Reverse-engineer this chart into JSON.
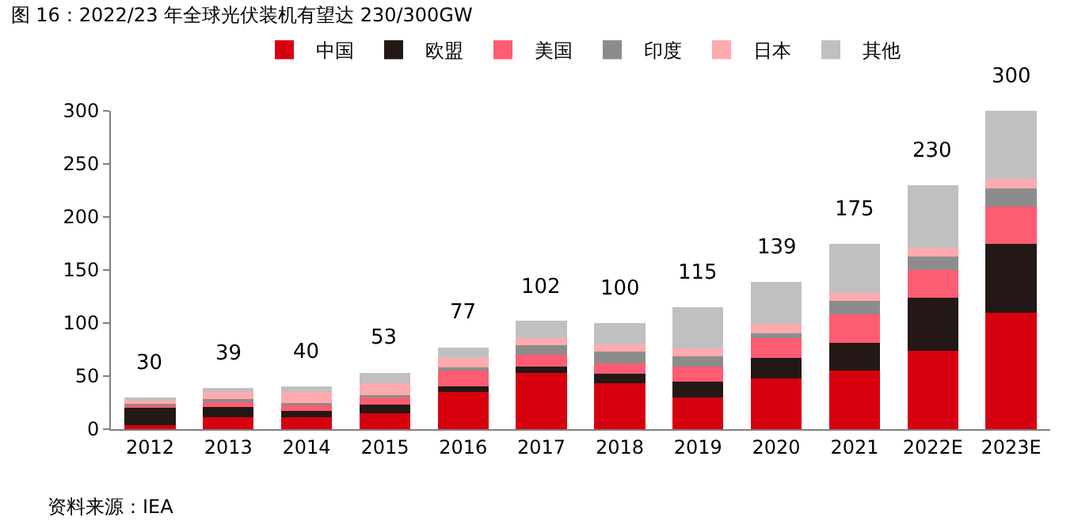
{
  "chart_data": {
    "type": "bar",
    "stacked": true,
    "title": "图 16：2022/23 年全球光伏装机有望达 230/300GW",
    "categories": [
      "2012",
      "2013",
      "2014",
      "2015",
      "2016",
      "2017",
      "2018",
      "2019",
      "2020",
      "2021",
      "2022E",
      "2023E"
    ],
    "series": [
      {
        "name": "中国",
        "color": "#d7000f",
        "values": [
          4,
          11,
          11,
          15,
          35,
          53,
          43,
          30,
          48,
          55,
          74,
          110
        ]
      },
      {
        "name": "欧盟",
        "color": "#231815",
        "values": [
          16,
          10,
          6,
          8,
          5,
          6,
          9,
          15,
          19,
          26,
          50,
          65
        ]
      },
      {
        "name": "美国",
        "color": "#fe5c72",
        "values": [
          3,
          5,
          6,
          7,
          15,
          11,
          10,
          14,
          19,
          27,
          26,
          35
        ]
      },
      {
        "name": "印度",
        "color": "#8c8c8c",
        "values": [
          1,
          2,
          2,
          2,
          3,
          9,
          11,
          10,
          4,
          13,
          13,
          17
        ]
      },
      {
        "name": "日本",
        "color": "#ffaaaf",
        "values": [
          3,
          7,
          10,
          11,
          9,
          7,
          7,
          7,
          9,
          7,
          8,
          9
        ]
      },
      {
        "name": "其他",
        "color": "#c0c0c0",
        "values": [
          3,
          4,
          5,
          10,
          10,
          16,
          20,
          39,
          40,
          47,
          59,
          64
        ]
      }
    ],
    "totals": [
      "30",
      "39",
      "40",
      "53",
      "77",
      "102",
      "100",
      "115",
      "139",
      "175",
      "230",
      "300"
    ],
    "ylim": [
      0,
      300
    ],
    "yticks": [
      0,
      50,
      100,
      150,
      200,
      250,
      300
    ],
    "grid": false,
    "legend": "top",
    "annotations": [
      "资料来源：IEA"
    ]
  }
}
